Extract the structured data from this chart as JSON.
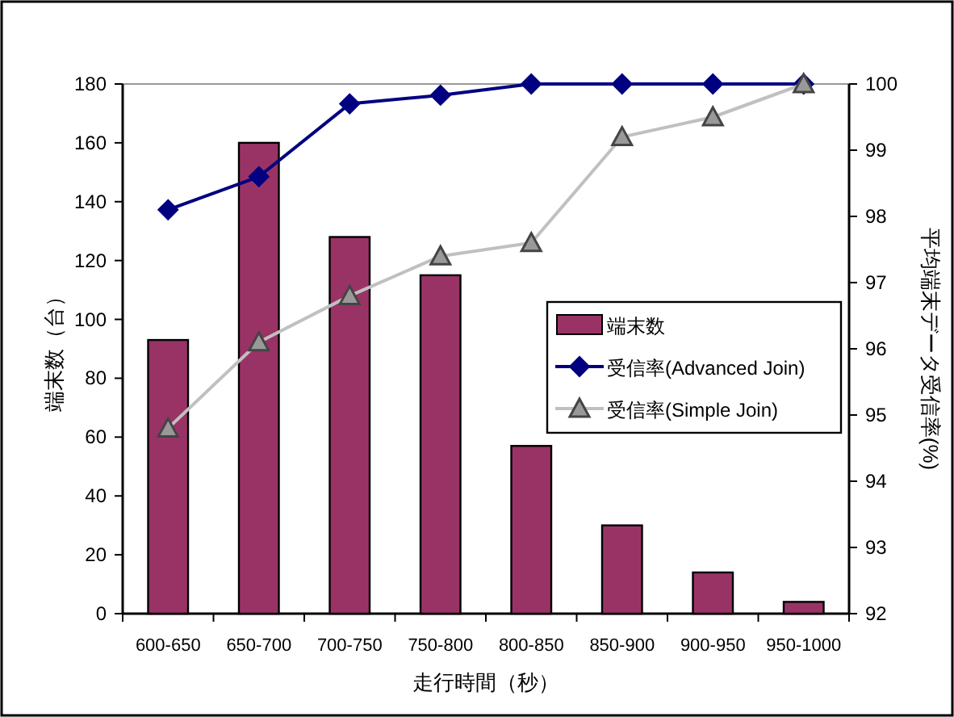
{
  "chart_data": {
    "type": "bar",
    "xlabel": "走行時間（秒）",
    "ylabel": "端末数（台）",
    "y2label": "平均端末データ受信率(%)",
    "categories": [
      "600-650",
      "650-700",
      "700-750",
      "750-800",
      "800-850",
      "850-900",
      "900-950",
      "950-1000"
    ],
    "series": [
      {
        "name": "端末数",
        "color": "#993366",
        "values": [
          93,
          160,
          128,
          115,
          57,
          30,
          14,
          4
        ]
      },
      {
        "name": "受信率(Advanced Join)",
        "type": "line",
        "axis": "y2",
        "color": "#000080",
        "marker": "diamond",
        "values": [
          98.1,
          98.6,
          99.7,
          99.83,
          100,
          100,
          100,
          100
        ]
      },
      {
        "name": "受信率(Simple Join)",
        "type": "line",
        "axis": "y2",
        "color": "#c0c0c0",
        "marker": "triangle",
        "values": [
          94.8,
          96.1,
          96.8,
          97.4,
          97.6,
          99.2,
          99.5,
          100
        ]
      }
    ],
    "ylim": [
      0,
      180
    ],
    "yticks": [
      0,
      20,
      40,
      60,
      80,
      100,
      120,
      140,
      160,
      180
    ],
    "y2lim": [
      92,
      100
    ],
    "y2ticks": [
      92,
      93,
      94,
      95,
      96,
      97,
      98,
      99,
      100
    ],
    "legend": "right",
    "grid": false
  }
}
